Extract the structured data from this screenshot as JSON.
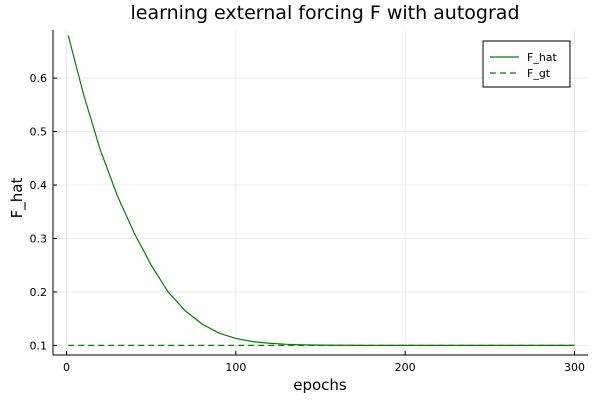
{
  "chart_data": {
    "type": "line",
    "title": "learning external forcing F with autograd",
    "xlabel": "epochs",
    "ylabel": "F_hat",
    "xlim": [
      -8,
      308
    ],
    "ylim": [
      0.082,
      0.69
    ],
    "xticks": [
      0,
      100,
      200,
      300
    ],
    "yticks": [
      0.1,
      0.2,
      0.3,
      0.4,
      0.5,
      0.6
    ],
    "grid": true,
    "legend_position": "top-right",
    "series": [
      {
        "name": "F_hat",
        "color": "#008000",
        "style": "solid",
        "x": [
          1,
          10,
          20,
          30,
          40,
          50,
          60,
          70,
          80,
          90,
          100,
          110,
          120,
          130,
          140,
          150,
          175,
          200,
          250,
          300
        ],
        "y": [
          0.68,
          0.57,
          0.465,
          0.38,
          0.31,
          0.25,
          0.2,
          0.165,
          0.14,
          0.123,
          0.113,
          0.107,
          0.104,
          0.102,
          0.101,
          0.1005,
          0.1,
          0.1,
          0.1,
          0.1
        ]
      },
      {
        "name": "F_gt",
        "color": "#008000",
        "style": "dashed",
        "x": [
          1,
          300
        ],
        "y": [
          0.1,
          0.1
        ]
      }
    ]
  }
}
